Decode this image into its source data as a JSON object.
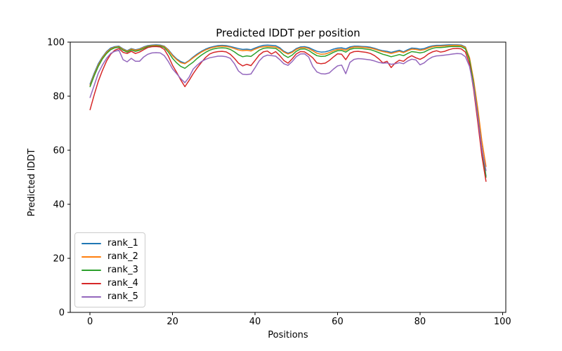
{
  "figure": {
    "title": "Predicted lDDT per position",
    "xlabel": "Positions",
    "ylabel": "Predicted lDDT"
  },
  "chart_data": {
    "type": "line",
    "title": "Predicted lDDT per position",
    "xlabel": "Positions",
    "ylabel": "Predicted lDDT",
    "xlim": [
      -4.8,
      100.8
    ],
    "ylim": [
      0,
      100
    ],
    "xticks": [
      0,
      20,
      40,
      60,
      80,
      100
    ],
    "yticks": [
      0,
      20,
      40,
      60,
      80,
      100
    ],
    "grid": false,
    "legend_position": "lower left",
    "x": [
      0,
      1,
      2,
      3,
      4,
      5,
      6,
      7,
      8,
      9,
      10,
      11,
      12,
      13,
      14,
      15,
      16,
      17,
      18,
      19,
      20,
      21,
      22,
      23,
      24,
      25,
      26,
      27,
      28,
      29,
      30,
      31,
      32,
      33,
      34,
      35,
      36,
      37,
      38,
      39,
      40,
      41,
      42,
      43,
      44,
      45,
      46,
      47,
      48,
      49,
      50,
      51,
      52,
      53,
      54,
      55,
      56,
      57,
      58,
      59,
      60,
      61,
      62,
      63,
      64,
      65,
      66,
      67,
      68,
      69,
      70,
      71,
      72,
      73,
      74,
      75,
      76,
      77,
      78,
      79,
      80,
      81,
      82,
      83,
      84,
      85,
      86,
      87,
      88,
      89,
      90,
      91,
      92,
      93,
      94,
      95,
      96
    ],
    "series": [
      {
        "name": "rank_1",
        "color": "#1f77b4",
        "values": [
          84.5,
          88.5,
          92.0,
          94.5,
          96.5,
          97.8,
          98.3,
          98.5,
          97.5,
          96.8,
          97.6,
          97.2,
          97.5,
          98.2,
          98.7,
          98.9,
          99.0,
          98.9,
          98.5,
          97.2,
          95.3,
          93.8,
          92.8,
          92.2,
          93.2,
          94.5,
          95.6,
          96.6,
          97.4,
          98.0,
          98.4,
          98.7,
          98.8,
          98.7,
          98.4,
          98.0,
          97.6,
          97.3,
          97.4,
          97.2,
          97.8,
          98.4,
          98.8,
          98.9,
          98.8,
          98.7,
          97.9,
          96.6,
          95.9,
          96.5,
          97.6,
          98.2,
          98.3,
          98.0,
          97.3,
          96.6,
          96.3,
          96.4,
          96.8,
          97.4,
          97.8,
          97.9,
          97.5,
          98.2,
          98.5,
          98.5,
          98.4,
          98.3,
          98.1,
          97.7,
          97.2,
          96.8,
          96.6,
          96.2,
          96.6,
          97.0,
          96.4,
          97.2,
          97.8,
          97.7,
          97.4,
          97.6,
          98.2,
          98.6,
          98.8,
          98.8,
          98.9,
          99.0,
          99.0,
          99.0,
          98.9,
          98.2,
          94.0,
          85.0,
          73.5,
          61.0,
          50.5
        ]
      },
      {
        "name": "rank_2",
        "color": "#ff7f0e",
        "values": [
          84.0,
          88.0,
          91.5,
          94.2,
          96.2,
          97.5,
          98.1,
          98.3,
          97.3,
          96.6,
          97.4,
          97.0,
          97.3,
          98.0,
          98.5,
          98.7,
          98.8,
          98.7,
          98.3,
          97.0,
          95.0,
          93.5,
          92.4,
          92.0,
          93.0,
          94.2,
          95.3,
          96.3,
          97.1,
          97.7,
          98.1,
          98.4,
          98.5,
          98.4,
          98.1,
          97.6,
          97.1,
          96.8,
          97.0,
          96.7,
          97.4,
          98.0,
          98.3,
          98.4,
          98.3,
          98.2,
          97.5,
          96.3,
          95.6,
          96.2,
          97.3,
          97.9,
          98.0,
          97.6,
          96.8,
          95.9,
          95.5,
          95.6,
          96.1,
          96.8,
          97.3,
          97.4,
          97.0,
          97.8,
          98.2,
          98.2,
          98.1,
          98.0,
          97.8,
          97.4,
          96.9,
          96.5,
          96.2,
          95.8,
          96.2,
          96.6,
          96.1,
          96.8,
          97.4,
          97.3,
          97.0,
          97.2,
          97.8,
          98.3,
          98.5,
          98.5,
          98.6,
          98.7,
          98.8,
          98.8,
          98.7,
          98.0,
          94.3,
          86.0,
          75.5,
          63.5,
          54.0
        ]
      },
      {
        "name": "rank_3",
        "color": "#2ca02c",
        "values": [
          83.5,
          87.5,
          91.0,
          93.8,
          95.8,
          97.2,
          97.9,
          98.1,
          97.0,
          96.3,
          97.1,
          96.6,
          97.0,
          97.7,
          98.3,
          98.5,
          98.6,
          98.5,
          98.0,
          96.3,
          94.0,
          92.3,
          91.0,
          90.3,
          91.5,
          92.6,
          94.0,
          95.2,
          96.2,
          97.0,
          97.5,
          97.8,
          97.9,
          97.8,
          97.3,
          96.4,
          95.3,
          94.6,
          94.9,
          94.7,
          95.8,
          97.0,
          97.7,
          97.9,
          97.8,
          97.7,
          96.6,
          95.2,
          94.3,
          95.2,
          96.6,
          97.4,
          97.5,
          96.9,
          95.9,
          95.0,
          94.7,
          94.8,
          95.4,
          96.2,
          96.8,
          96.9,
          96.3,
          97.3,
          97.7,
          97.7,
          97.6,
          97.4,
          97.2,
          96.7,
          96.1,
          95.5,
          95.1,
          94.6,
          95.0,
          95.4,
          95.0,
          95.8,
          96.5,
          96.3,
          96.0,
          96.3,
          97.1,
          97.7,
          98.0,
          98.0,
          98.1,
          98.3,
          98.4,
          98.4,
          98.3,
          97.5,
          93.5,
          84.5,
          73.0,
          60.5,
          50.0
        ]
      },
      {
        "name": "rank_4",
        "color": "#d62728",
        "values": [
          75.0,
          80.5,
          85.5,
          89.5,
          93.0,
          95.5,
          97.0,
          97.6,
          96.2,
          95.8,
          96.6,
          95.8,
          96.3,
          97.2,
          98.0,
          98.3,
          98.4,
          98.2,
          97.3,
          94.8,
          91.4,
          88.8,
          86.0,
          83.5,
          85.8,
          88.3,
          90.5,
          92.5,
          94.3,
          95.6,
          96.2,
          96.5,
          96.6,
          96.4,
          95.5,
          94.0,
          92.2,
          91.2,
          91.8,
          91.3,
          93.2,
          95.2,
          96.4,
          96.7,
          95.6,
          96.5,
          95.0,
          93.2,
          92.2,
          93.8,
          95.6,
          96.5,
          96.4,
          95.4,
          94.2,
          92.3,
          92.0,
          92.2,
          93.2,
          94.5,
          95.7,
          95.5,
          93.5,
          95.9,
          96.5,
          96.6,
          96.4,
          96.2,
          95.8,
          95.0,
          93.8,
          92.3,
          92.9,
          90.6,
          92.3,
          93.3,
          92.9,
          94.2,
          95.0,
          94.2,
          93.6,
          94.4,
          95.6,
          96.4,
          96.8,
          96.3,
          96.6,
          97.2,
          97.6,
          97.7,
          97.5,
          96.3,
          92.0,
          82.5,
          70.5,
          58.0,
          48.5
        ]
      },
      {
        "name": "rank_5",
        "color": "#9467bd",
        "values": [
          79.5,
          84.0,
          88.5,
          91.5,
          94.0,
          95.8,
          96.6,
          97.0,
          93.5,
          92.7,
          94.0,
          92.9,
          92.9,
          94.5,
          95.5,
          96.0,
          96.1,
          96.0,
          95.0,
          92.8,
          90.1,
          88.3,
          86.5,
          85.0,
          87.0,
          90.0,
          91.5,
          92.8,
          93.6,
          94.2,
          94.5,
          94.8,
          94.8,
          94.6,
          94.0,
          92.0,
          89.3,
          88.1,
          88.0,
          88.2,
          90.5,
          93.0,
          94.6,
          95.2,
          95.0,
          94.8,
          93.5,
          92.0,
          91.4,
          92.8,
          94.6,
          95.6,
          95.7,
          94.5,
          91.0,
          89.0,
          88.3,
          88.2,
          88.6,
          90.0,
          91.2,
          91.5,
          88.3,
          92.5,
          93.6,
          93.9,
          93.8,
          93.6,
          93.4,
          93.0,
          92.5,
          92.2,
          92.3,
          91.8,
          92.0,
          92.4,
          92.0,
          93.0,
          93.7,
          93.4,
          91.6,
          92.3,
          93.6,
          94.5,
          94.9,
          95.0,
          95.2,
          95.4,
          95.6,
          95.8,
          95.7,
          94.6,
          91.0,
          83.5,
          72.5,
          60.5,
          52.5
        ]
      }
    ]
  }
}
